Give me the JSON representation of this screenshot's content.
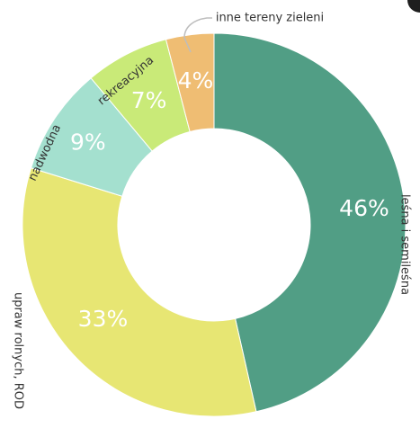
{
  "chart_data": {
    "type": "pie",
    "title": "",
    "donut": true,
    "categories": [
      "leśna i semileśna",
      "upraw rolnych, ROD",
      "nadwodna",
      "rekreacyjna",
      "inne tereny zieleni"
    ],
    "values": [
      46,
      33,
      9,
      7,
      4
    ],
    "value_labels": [
      "46%",
      "33%",
      "9%",
      "7%",
      "4%"
    ],
    "colors": [
      "#519e85",
      "#e7e673",
      "#a4e0cf",
      "#c9ea78",
      "#efbd73"
    ],
    "legend": "none"
  }
}
